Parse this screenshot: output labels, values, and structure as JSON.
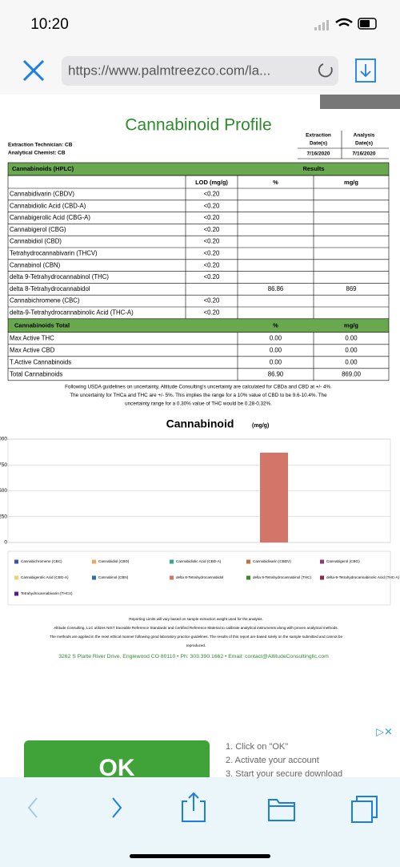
{
  "status": {
    "time": "10:20"
  },
  "browser": {
    "url": "https://www.palmtreezco.com/la..."
  },
  "report": {
    "title": "Cannabinoid Profile",
    "staff": [
      "Extraction Technician: CB",
      "Analytical Chemist: CB"
    ],
    "dates": {
      "headers": [
        [
          "Extraction",
          "Date(s)"
        ],
        [
          "Analysis",
          "Date(s)"
        ]
      ],
      "values": [
        "7/16/2020",
        "7/16/2020"
      ]
    },
    "hplc": {
      "header": "Cannabinoids (HPLC)",
      "results": "Results",
      "columns": [
        "LOD (mg/g)",
        "%",
        "mg/g"
      ],
      "rows": [
        [
          "Cannabidivarin (CBDV)",
          "<0.20",
          null,
          null
        ],
        [
          "Cannabidiolic Acid (CBD-A)",
          "<0.20",
          null,
          null
        ],
        [
          "Cannabigerolic Acid (CBG-A)",
          "<0.20",
          null,
          null
        ],
        [
          "Cannabigerol (CBG)",
          "<0.20",
          null,
          null
        ],
        [
          "Cannabidiol (CBD)",
          "<0.20",
          null,
          null
        ],
        [
          "Tetrahydrocannabivarin (THCV)",
          "<0.20",
          null,
          null
        ],
        [
          "Cannabinol (CBN)",
          "<0.20",
          null,
          null
        ],
        [
          "delta 9-Tetrahydrocannabinol (THC)",
          "<0.20",
          null,
          null
        ],
        [
          "delta 8-Tetrahydrocannabidol",
          null,
          "86.86",
          "869"
        ],
        [
          "Cannabichromene (CBC)",
          "<0.20",
          null,
          null
        ],
        [
          "delta-9-Tetrahydrocannabinolic Acid (THC-A)",
          "<0.20",
          null,
          null
        ]
      ]
    },
    "totals": {
      "header": "Cannabinoids Total",
      "columns": [
        "%",
        "mg/g"
      ],
      "rows": [
        [
          "Max Active THC",
          "0.00",
          "0.00"
        ],
        [
          "Max Active CBD",
          "0.00",
          "0.00"
        ],
        [
          "T.Active Cannabinoids",
          "0.00",
          "0.00"
        ],
        [
          "Total Cannabinoids",
          "86.90",
          "869.00"
        ]
      ]
    },
    "note": [
      "Following USDA guidelines on uncertainty, Altitude Consulting's uncertainty are calculated for CBDa and CBD at +/- 4%.",
      "The uncertainty for THCa and THC are +/- 5%. This implies the range for a 10% value of CBD to be 9.6-10.4%. The",
      "uncertainty range for a 0.30% value of THC would be 0.28-0.32%."
    ],
    "footer": [
      "Reporting Limits will vary based on sample extraction weight used for the analysis.",
      "Altitude Consulting, LLC utilizes NIST traceable Reference Standards and Certified Reference Material to calibrate analytical instruments along with proven analytical methods.",
      "The methods are applied in the most ethical manner following good laboratory practice guidelines. The results of this report are based solely on the sample submitted and cannot be",
      "reproduced."
    ],
    "address": "3262 S Platte River Drive, Englewood CO 80110  •  Ph: 303.390.1662  •  Email: contact@AltitudeConsultingllc.com"
  },
  "chart_data": {
    "type": "bar",
    "title": "Cannabinoid",
    "subtitle": "(mg/g)",
    "ylim": [
      0,
      1000
    ],
    "yticks": [
      0,
      250,
      500,
      750,
      1000
    ],
    "grid": true,
    "series": [
      {
        "name": "Cannabichromene (CBC)",
        "color": "#3b5998",
        "values": [
          null
        ]
      },
      {
        "name": "Cannabidiol (CBD)",
        "color": "#f0a860",
        "values": [
          null
        ]
      },
      {
        "name": "Cannabidiolic Acid (CBD-A)",
        "color": "#3aa58a",
        "values": [
          null
        ]
      },
      {
        "name": "Cannabidivarin (CBDV)",
        "color": "#c0703a",
        "values": [
          null
        ]
      },
      {
        "name": "Cannabigerol (CBG)",
        "color": "#8e3a6a",
        "values": [
          null
        ]
      },
      {
        "name": "Cannabigerolic Acid (CBG-A)",
        "color": "#f2d070",
        "values": [
          null
        ]
      },
      {
        "name": "Cannabinol (CBN)",
        "color": "#2d6fa0",
        "values": [
          null
        ]
      },
      {
        "name": "delta 8-Tetrahydrocannabidol",
        "color": "#d4756a",
        "values": [
          869
        ]
      },
      {
        "name": "delta 9-Tetrahydrocannabinol (THC)",
        "color": "#3a8a2a",
        "values": [
          null
        ]
      },
      {
        "name": "delta-9-Tetrahydrocannabinolic Acid (THC-A)",
        "color": "#8a2a4a",
        "values": [
          null
        ]
      },
      {
        "name": "Tetrahydrocannabivarin (THCV)",
        "color": "#5a1a8a",
        "values": [
          null
        ]
      }
    ]
  },
  "ad": {
    "button": "OK",
    "steps": [
      "1. Click on \"OK\"",
      "2. Activate your account",
      "3. Start your secure download"
    ]
  }
}
